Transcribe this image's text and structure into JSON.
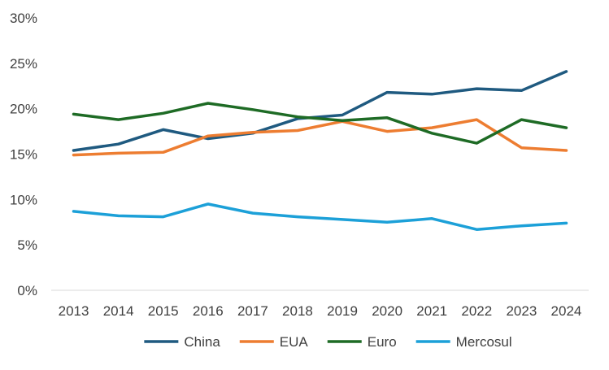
{
  "chart_data": {
    "type": "line",
    "title": "",
    "xlabel": "",
    "ylabel": "",
    "categories": [
      "2013",
      "2014",
      "2015",
      "2016",
      "2017",
      "2018",
      "2019",
      "2020",
      "2021",
      "2022",
      "2023",
      "2024"
    ],
    "ylim": [
      0,
      30
    ],
    "y_ticks": [
      0,
      5,
      10,
      15,
      20,
      25,
      30
    ],
    "y_tick_labels": [
      "0%",
      "5%",
      "10%",
      "15%",
      "20%",
      "25%",
      "30%"
    ],
    "grid": false,
    "legend_position": "bottom",
    "series": [
      {
        "name": "China",
        "color": "#1f5a80",
        "values": [
          15.4,
          16.1,
          17.7,
          16.7,
          17.3,
          18.9,
          19.3,
          21.8,
          21.6,
          22.2,
          22.0,
          24.1
        ]
      },
      {
        "name": "EUA",
        "color": "#ed7d31",
        "values": [
          14.9,
          15.1,
          15.2,
          17.0,
          17.4,
          17.6,
          18.6,
          17.5,
          17.9,
          18.8,
          15.7,
          15.4
        ]
      },
      {
        "name": "Euro",
        "color": "#1e6b25",
        "values": [
          19.4,
          18.8,
          19.5,
          20.6,
          19.9,
          19.1,
          18.7,
          19.0,
          17.3,
          16.2,
          18.8,
          17.9
        ]
      },
      {
        "name": "Mercosul",
        "color": "#1ca0d8",
        "values": [
          8.7,
          8.2,
          8.1,
          9.5,
          8.5,
          8.1,
          7.8,
          7.5,
          7.9,
          6.7,
          7.1,
          7.4
        ]
      }
    ]
  }
}
